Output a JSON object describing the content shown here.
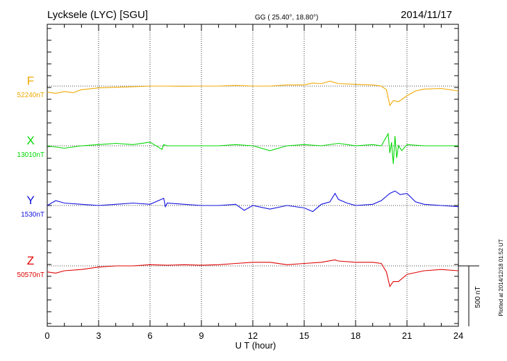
{
  "header": {
    "station": "Lycksele (LYC)  [SGU]",
    "coords": "GG ( 25.40°,  18.80°)",
    "date": "2014/11/17"
  },
  "footer": {
    "plotted": "Plotted at 2014/12/18 01:52 UT"
  },
  "chart_data": {
    "type": "line",
    "title": "Lycksele (LYC)  [SGU]",
    "xlabel": "U T (hour)",
    "xlim": [
      0,
      24
    ],
    "xticks": [
      0,
      3,
      6,
      9,
      12,
      15,
      18,
      21,
      24
    ],
    "xtick_labels": [
      "0",
      "3",
      "6",
      "9",
      "12",
      "15",
      "18",
      "21",
      "24"
    ],
    "vertical_grid": [
      3,
      6,
      9,
      12,
      15,
      18,
      21
    ],
    "scale_bar": {
      "value": 500,
      "label": "500 nT"
    },
    "series": [
      {
        "name": "F",
        "baseline_label": "52240nT",
        "color": "#f0a800",
        "x": [
          0,
          0.5,
          1,
          1.5,
          2,
          3,
          4,
          5,
          6,
          7,
          8,
          9,
          10,
          11,
          12,
          13,
          14,
          15,
          15.5,
          16,
          16.5,
          17,
          18,
          19,
          19.5,
          19.8,
          20.0,
          20.2,
          20.5,
          21,
          21.5,
          22,
          23,
          24
        ],
        "y": [
          -50,
          -60,
          -45,
          -55,
          -30,
          -15,
          -10,
          -5,
          0,
          0,
          -2,
          0,
          0,
          5,
          0,
          0,
          10,
          10,
          25,
          20,
          40,
          20,
          15,
          10,
          0,
          -30,
          -160,
          -120,
          -130,
          -80,
          -40,
          -25,
          -20,
          -40
        ]
      },
      {
        "name": "X",
        "baseline_label": "13010nT",
        "color": "#00d800",
        "x": [
          0,
          1,
          2,
          3,
          4,
          5,
          6,
          6.7,
          6.8,
          7,
          8,
          9,
          10,
          11,
          12,
          13,
          14,
          15,
          16,
          17,
          18,
          19,
          19.5,
          19.9,
          20.0,
          20.1,
          20.2,
          20.3,
          20.4,
          20.5,
          20.7,
          21,
          22,
          23,
          24
        ],
        "y": [
          0,
          -20,
          0,
          10,
          20,
          10,
          30,
          -30,
          10,
          0,
          0,
          0,
          0,
          10,
          0,
          -40,
          0,
          10,
          0,
          20,
          0,
          10,
          0,
          100,
          -60,
          30,
          -150,
          80,
          -100,
          0,
          -40,
          10,
          0,
          0,
          0
        ]
      },
      {
        "name": "Y",
        "baseline_label": "1530nT",
        "color": "#1010e0",
        "x": [
          0,
          0.5,
          1,
          2,
          3,
          4,
          5,
          6,
          6.8,
          6.9,
          7,
          8,
          9,
          10,
          11,
          11.5,
          12,
          13,
          14,
          15,
          15.5,
          16,
          16.5,
          16.8,
          17,
          17.5,
          18,
          19,
          19.5,
          20,
          20.3,
          20.6,
          21,
          21.5,
          22,
          23,
          24
        ],
        "y": [
          0,
          40,
          20,
          10,
          0,
          10,
          20,
          10,
          60,
          -10,
          20,
          10,
          0,
          0,
          10,
          -40,
          0,
          -30,
          0,
          -20,
          -50,
          10,
          30,
          100,
          50,
          20,
          0,
          10,
          40,
          100,
          120,
          90,
          100,
          30,
          10,
          0,
          -10
        ]
      },
      {
        "name": "Z",
        "baseline_label": "50570nT",
        "color": "#e00000",
        "x": [
          0,
          0.5,
          1,
          2,
          3,
          4,
          5,
          6,
          7,
          8,
          9,
          10,
          11,
          12,
          13,
          14,
          15,
          16,
          16.8,
          17,
          18,
          19,
          19.5,
          19.8,
          20.0,
          20.2,
          20.5,
          21,
          22,
          23,
          24
        ],
        "y": [
          -50,
          -60,
          -40,
          -30,
          -10,
          0,
          0,
          10,
          5,
          10,
          5,
          10,
          20,
          30,
          30,
          10,
          20,
          30,
          50,
          40,
          30,
          30,
          20,
          -50,
          -170,
          -130,
          -130,
          -70,
          -40,
          -30,
          -40
        ]
      }
    ]
  }
}
